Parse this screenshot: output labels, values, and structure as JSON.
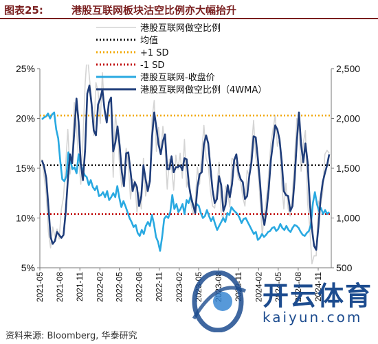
{
  "figure": {
    "label": "图表25:",
    "title": "港股互联网板块沽空比例亦大幅抬升",
    "source": "资料来源: Bloomberg, 华泰研究"
  },
  "watermark": {
    "text_cn": "开云体育",
    "text_en": "kaiyun.com",
    "color": "#1d4c8f"
  },
  "chart_data": {
    "type": "line",
    "x_tick_labels": [
      "2021-05",
      "2021-08",
      "2021-11",
      "2022-02",
      "2022-05",
      "2022-08",
      "2022-11",
      "2023-02",
      "2023-05",
      "2023-08",
      "2023-11",
      "2024-02",
      "2024-05",
      "2024-08",
      "2024-11"
    ],
    "x_range": [
      "2021-05-01",
      "2024-12-31"
    ],
    "y_left": {
      "range": [
        5,
        25
      ],
      "ticks": [
        5,
        10,
        15,
        20,
        25
      ],
      "tick_labels": [
        "5%",
        "10%",
        "15%",
        "20%",
        "25%"
      ]
    },
    "y_right": {
      "range": [
        500,
        2500
      ],
      "ticks": [
        500,
        1000,
        1500,
        2000,
        2500
      ],
      "tick_labels": [
        "500",
        "1,000",
        "1,500",
        "2,000",
        "2,500"
      ]
    },
    "grid": false,
    "legend_position": "top-center",
    "reference_lines": [
      {
        "name": "均值",
        "value": 15.3,
        "axis": "left",
        "color": "#111111",
        "style": "dotted"
      },
      {
        "name": "+1 SD",
        "value": 20.3,
        "axis": "left",
        "color": "#f2a900",
        "style": "dotted"
      },
      {
        "name": "-1 SD",
        "value": 10.4,
        "axis": "left",
        "color": "#c00000",
        "style": "dotted"
      }
    ],
    "series": [
      {
        "name": "港股互联网做空比例",
        "axis": "left",
        "color": "#d4d4d4",
        "width": 1.6,
        "values": [
          15.9,
          14.2,
          12.3,
          8.6,
          7.0,
          9.1,
          8.1,
          8.9,
          7.9,
          10.9,
          12.1,
          15.4,
          18.9,
          14.4,
          16.0,
          21.6,
          19.1,
          15.8,
          13.4,
          17.9,
          23.5,
          26.6,
          24.1,
          21.9,
          18.3,
          23.6,
          22.7,
          19.5,
          24.6,
          20.6,
          19.8,
          21.7,
          21.5,
          14.1,
          20.4,
          18.6,
          15.2,
          13.1,
          14.4,
          17.0,
          15.4,
          11.9,
          13.9,
          13.7,
          10.6,
          12.6,
          10.9,
          16.0,
          12.2,
          13.6,
          13.9,
          20.0,
          21.8,
          16.7,
          19.1,
          16.4,
          19.2,
          17.3,
          12.9,
          15.9,
          15.2,
          12.8,
          16.3,
          14.9,
          16.5,
          14.0,
          17.9,
          13.1,
          14.2,
          11.4,
          10.4,
          11.7,
          15.1,
          13.4,
          16.6,
          19.3,
          16.0,
          15.3,
          12.8,
          11.2,
          11.0,
          13.0,
          15.6,
          10.4,
          9.9,
          13.2,
          12.6,
          11.1,
          16.0,
          15.8,
          15.2,
          13.9,
          13.7,
          12.1,
          11.2,
          14.8,
          14.2,
          17.0,
          19.8,
          16.1,
          14.9,
          11.9,
          8.3,
          10.4,
          12.1,
          14.4,
          17.5,
          18.9,
          20.3,
          17.2,
          18.0,
          13.4,
          10.9,
          13.5,
          10.9,
          10.2,
          12.5,
          16.0,
          20.0,
          19.4,
          14.7,
          17.5,
          18.8,
          11.5,
          9.1,
          5.4,
          6.2,
          6.2,
          11.7,
          11.2,
          12.6,
          16.4,
          16.8,
          16.5
        ]
      },
      {
        "name": "港股互联网做空比例（4WMA）",
        "axis": "left",
        "color": "#1f3d7a",
        "width": 2.6,
        "values": [
          15.8,
          15.2,
          14.0,
          11.2,
          8.1,
          7.4,
          7.7,
          8.6,
          8.3,
          8.0,
          8.3,
          10.6,
          13.8,
          16.4,
          15.5,
          18.7,
          22.0,
          19.6,
          15.4,
          13.8,
          16.9,
          22.5,
          23.3,
          21.4,
          18.8,
          18.3,
          21.4,
          22.0,
          22.9,
          20.9,
          19.6,
          21.6,
          22.1,
          16.7,
          17.6,
          19.2,
          17.3,
          14.6,
          13.2,
          16.5,
          16.6,
          14.7,
          12.7,
          13.6,
          13.1,
          11.2,
          12.2,
          15.3,
          13.9,
          12.7,
          13.7,
          18.2,
          20.6,
          19.1,
          17.4,
          16.4,
          17.7,
          18.4,
          14.9,
          14.9,
          16.2,
          14.6,
          15.1,
          15.1,
          15.3,
          14.8,
          16.0,
          15.9,
          13.4,
          12.1,
          11.3,
          10.5,
          13.1,
          14.4,
          14.6,
          17.4,
          18.3,
          17.5,
          15.1,
          12.8,
          11.5,
          11.9,
          14.2,
          13.3,
          10.7,
          11.3,
          13.3,
          12.1,
          13.4,
          15.8,
          16.4,
          14.6,
          13.9,
          13.6,
          11.9,
          12.2,
          14.2,
          15.6,
          18.2,
          18.1,
          15.9,
          13.5,
          10.4,
          9.3,
          10.8,
          12.9,
          15.8,
          17.6,
          19.3,
          18.9,
          17.9,
          15.7,
          12.7,
          12.3,
          12.2,
          10.7,
          11.2,
          13.9,
          17.7,
          20.6,
          17.4,
          15.6,
          17.5,
          15.6,
          11.6,
          8.9,
          7.2,
          6.8,
          9.1,
          11.9,
          13.6,
          14.5,
          15.3,
          16.4
        ]
      },
      {
        "name": "港股互联网-收盘价",
        "axis": "right",
        "color": "#29a9e1",
        "width": 2.6,
        "values": [
          1990,
          2010,
          2020,
          2050,
          2000,
          2040,
          2060,
          1890,
          1800,
          1570,
          1390,
          1370,
          1420,
          1660,
          1570,
          1490,
          1510,
          1450,
          1640,
          1540,
          1480,
          1430,
          1410,
          1330,
          1380,
          1310,
          1280,
          1320,
          1220,
          1230,
          1260,
          1210,
          1270,
          1180,
          1210,
          1250,
          1210,
          1320,
          1200,
          1110,
          1170,
          1120,
          1060,
          1000,
          960,
          910,
          930,
          850,
          820,
          880,
          840,
          920,
          960,
          920,
          1030,
          940,
          810,
          760,
          670,
          810,
          990,
          1020,
          1000,
          1060,
          1230,
          1090,
          1140,
          1060,
          1090,
          1140,
          1040,
          1180,
          1150,
          1220,
          1140,
          1080,
          1140,
          1120,
          1050,
          1000,
          1020,
          1080,
          1020,
          970,
          1010,
          940,
          880,
          920,
          960,
          1000,
          960,
          1050,
          1030,
          1110,
          1080,
          1060,
          1040,
          1000,
          950,
          990,
          1000,
          960,
          920,
          880,
          840,
          860,
          780,
          800,
          840,
          810,
          830,
          860,
          870,
          900,
          910,
          870,
          890,
          940,
          900,
          880,
          920,
          880,
          860,
          900,
          930,
          920,
          900,
          860,
          830,
          820,
          850,
          870,
          930,
          1150,
          1260,
          1140,
          1070,
          1100,
          1040,
          1080,
          1040,
          1060
        ]
      }
    ]
  }
}
